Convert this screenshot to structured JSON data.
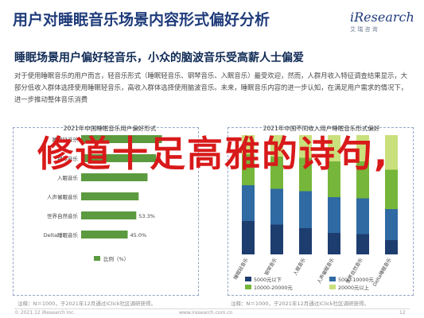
{
  "header": {
    "title": "用户对睡眠音乐场景内容形式偏好分析",
    "logo_main": "iResearch",
    "logo_sub": "艾 瑞 咨 询"
  },
  "subtitle": "睡眠场景用户偏好轻音乐，小众的脑波音乐受高薪人士偏爱",
  "description": "对于使用睡眠音乐的用户而言，轻音乐形式（睡眠轻音乐、钢琴音乐、入眠音乐）最受欢迎，然而，人群月收入特征调查结果显示，大部分低收入群体选择使用睡眠轻音乐，高收入群体选择使用脑波音乐。未来，睡眠音乐内容的进一步认知，在满足用户需求的情况下，进一步推动整体音乐消费",
  "overlay_title": "修道十足高雅的诗句,",
  "notes": {
    "left": "注释：N＝1000，于2021年12月通过iClick社区调研获得。",
    "right": "注释：N＝1000，于2021年12月通过iClick社区调研获得。"
  },
  "footer": {
    "left": "© 2021.12 iResearch Inc.",
    "url": "www.iresearch.com.cn",
    "page": "12"
  },
  "chart_data": [
    {
      "type": "bar",
      "orientation": "horizontal",
      "title": "2021年中国睡眠音乐用户偏好形式",
      "categories": [
        "睡眠轻音乐",
        "钢琴音乐",
        "入眠音乐",
        "人声催眠音乐",
        "世界自然音乐",
        "Delta睡眠音乐"
      ],
      "values": [
        78.1,
        72.4,
        64.2,
        55.6,
        53.3,
        45.0
      ],
      "value_labels": [
        "",
        "",
        "",
        "",
        "53.3%",
        "45.0%"
      ],
      "legend": [
        "比例（%）"
      ],
      "color": "#5b9a3f"
    },
    {
      "type": "bar",
      "orientation": "vertical-stacked-percent",
      "title": "2021年中国不同收入用户睡眠音乐形式偏好",
      "categories": [
        "睡眠轻音乐",
        "钢琴音乐",
        "入眠音乐",
        "人声催眠音乐",
        "世界自然音乐",
        "Delta睡眠音乐"
      ],
      "series": [
        {
          "name": "5000元以下",
          "values": [
            28,
            25,
            22,
            18,
            17,
            12
          ],
          "color": "#1e3d6f"
        },
        {
          "name": "5000-10000元",
          "values": [
            30,
            30,
            31,
            30,
            30,
            26
          ],
          "color": "#2f6aa3"
        },
        {
          "name": "10000-20000元",
          "values": [
            26,
            27,
            28,
            30,
            31,
            33
          ],
          "color": "#76b63a"
        },
        {
          "name": "20000元以上",
          "values": [
            16,
            18,
            19,
            22,
            22,
            29
          ],
          "color": "#c9e07c"
        }
      ],
      "ylim": [
        0,
        100
      ]
    }
  ]
}
